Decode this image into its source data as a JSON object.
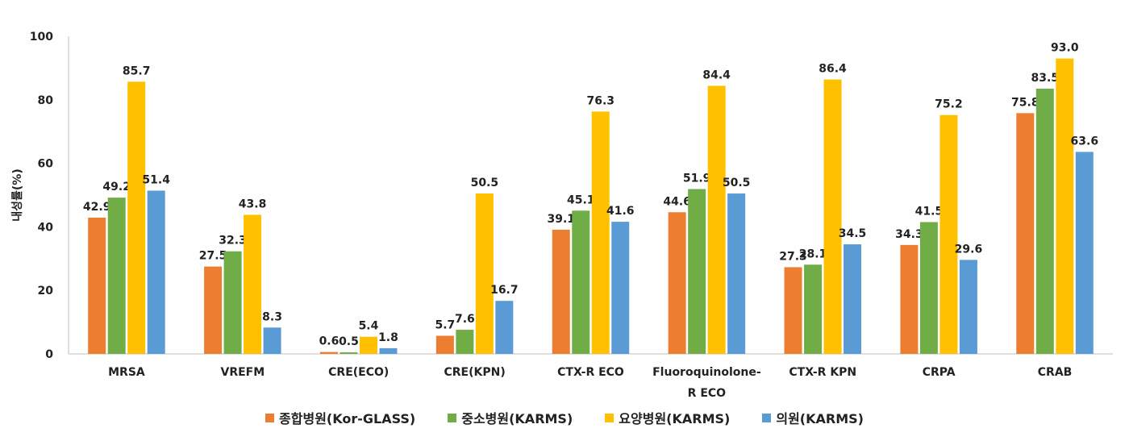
{
  "chart_data": {
    "type": "bar",
    "y_label": "내성률(%)",
    "categories": [
      "MRSA",
      "VREFM",
      "CRE(ECO)",
      "CRE(KPN)",
      "CTX-R ECO",
      "Fluoroquinolone-R ECO",
      "CTX-R KPN",
      "CRPA",
      "CRAB"
    ],
    "series": [
      {
        "name": "종합병원(Kor-GLASS)",
        "color": "#ed7d31",
        "values": [
          42.9,
          27.5,
          0.6,
          5.7,
          39.1,
          44.6,
          27.3,
          34.3,
          75.8
        ]
      },
      {
        "name": "중소병원(KARMS)",
        "color": "#70ad47",
        "values": [
          49.2,
          32.3,
          0.5,
          7.6,
          45.1,
          51.9,
          28.1,
          41.5,
          83.5
        ]
      },
      {
        "name": "요양병원(KARMS)",
        "color": "#ffc000",
        "values": [
          85.7,
          43.8,
          5.4,
          50.5,
          76.3,
          84.4,
          86.4,
          75.2,
          93.0
        ],
        "value_labels": [
          "85.7",
          "43.8",
          "5.4",
          "50.5",
          "76.3",
          "84.4",
          "86.4",
          "75.2",
          "93.0"
        ]
      },
      {
        "name": "의원(KARMS)",
        "color": "#5b9bd5",
        "values": [
          51.4,
          8.3,
          1.8,
          16.7,
          41.6,
          50.5,
          34.5,
          29.6,
          63.6
        ]
      }
    ],
    "ylim": [
      0,
      100
    ],
    "yticks": [
      0,
      20,
      40,
      60,
      80,
      100
    ],
    "grid": false
  }
}
